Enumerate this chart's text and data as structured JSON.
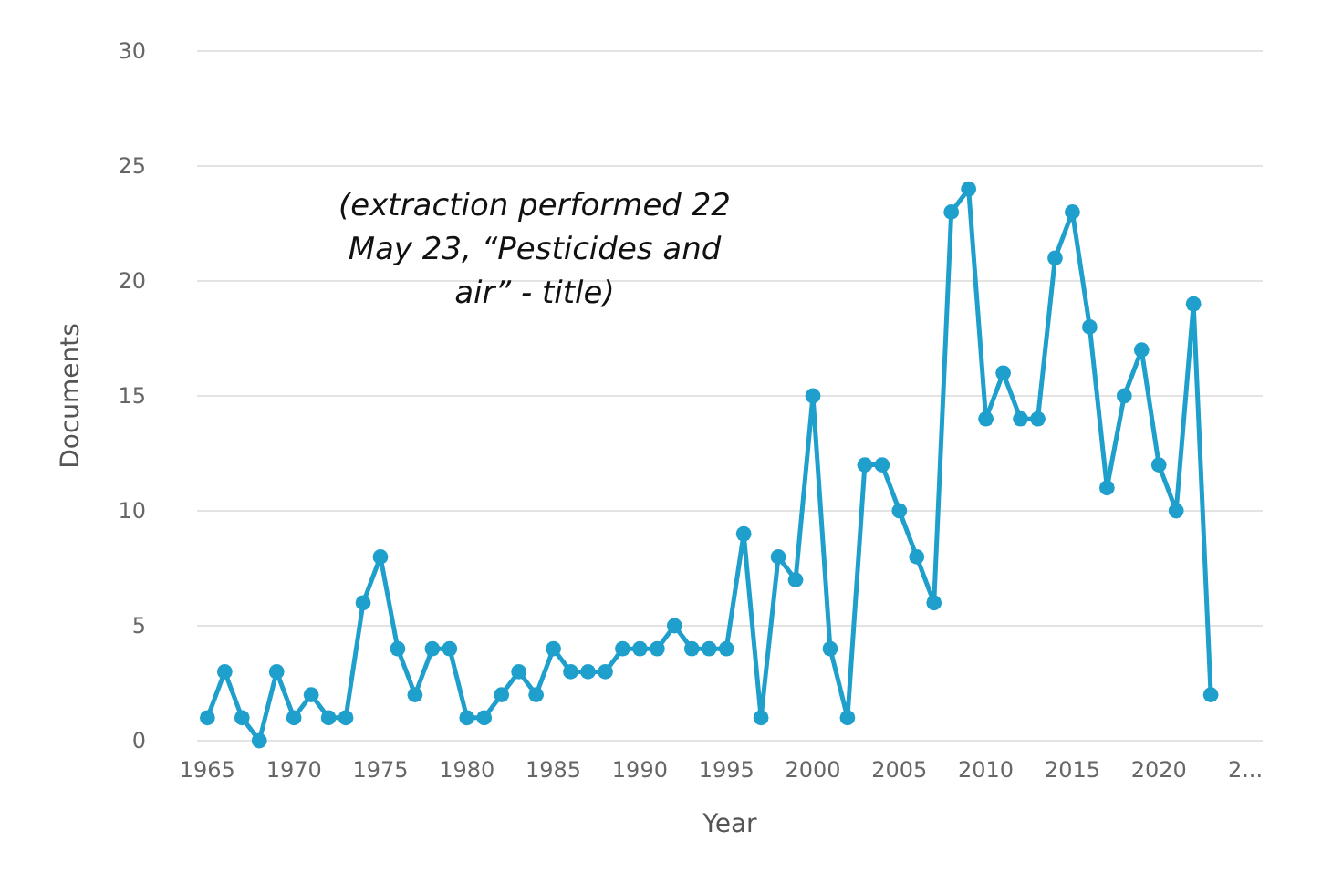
{
  "chart_data": {
    "type": "line",
    "xlabel": "Year",
    "ylabel": "Documents",
    "annotations": [
      "(extraction performed 22 May 23, “Pesticides and air” - title)"
    ],
    "x": [
      1965,
      1966,
      1967,
      1968,
      1969,
      1970,
      1971,
      1972,
      1973,
      1974,
      1975,
      1976,
      1977,
      1978,
      1979,
      1980,
      1981,
      1982,
      1983,
      1984,
      1985,
      1986,
      1987,
      1988,
      1989,
      1990,
      1991,
      1992,
      1993,
      1994,
      1995,
      1996,
      1997,
      1998,
      1999,
      2000,
      2001,
      2002,
      2003,
      2004,
      2005,
      2006,
      2007,
      2008,
      2009,
      2010,
      2011,
      2012,
      2013,
      2014,
      2015,
      2016,
      2017,
      2018,
      2019,
      2020,
      2021,
      2022,
      2023
    ],
    "series": [
      {
        "color": "#1f9fcc",
        "values": [
          1,
          3,
          1,
          0,
          3,
          1,
          2,
          1,
          1,
          6,
          8,
          4,
          2,
          4,
          4,
          1,
          1,
          2,
          3,
          2,
          4,
          3,
          3,
          3,
          4,
          4,
          4,
          5,
          4,
          4,
          4,
          9,
          1,
          8,
          7,
          15,
          4,
          1,
          12,
          12,
          10,
          8,
          6,
          23,
          24,
          14,
          16,
          14,
          14,
          21,
          23,
          18,
          11,
          15,
          17,
          12,
          10,
          19,
          2
        ]
      }
    ],
    "xlim": [
      1964.4,
      2026
    ],
    "ylim": [
      0,
      30
    ],
    "xticks": [
      1965,
      1970,
      1975,
      1980,
      1985,
      1990,
      1995,
      2000,
      2005,
      2010,
      2015,
      2020,
      {
        "value": 2025,
        "label": "2..."
      }
    ],
    "yticks": [
      0,
      5,
      10,
      15,
      20,
      25,
      30
    ],
    "grid": "y",
    "marker": "circle",
    "line_style": "solid"
  }
}
